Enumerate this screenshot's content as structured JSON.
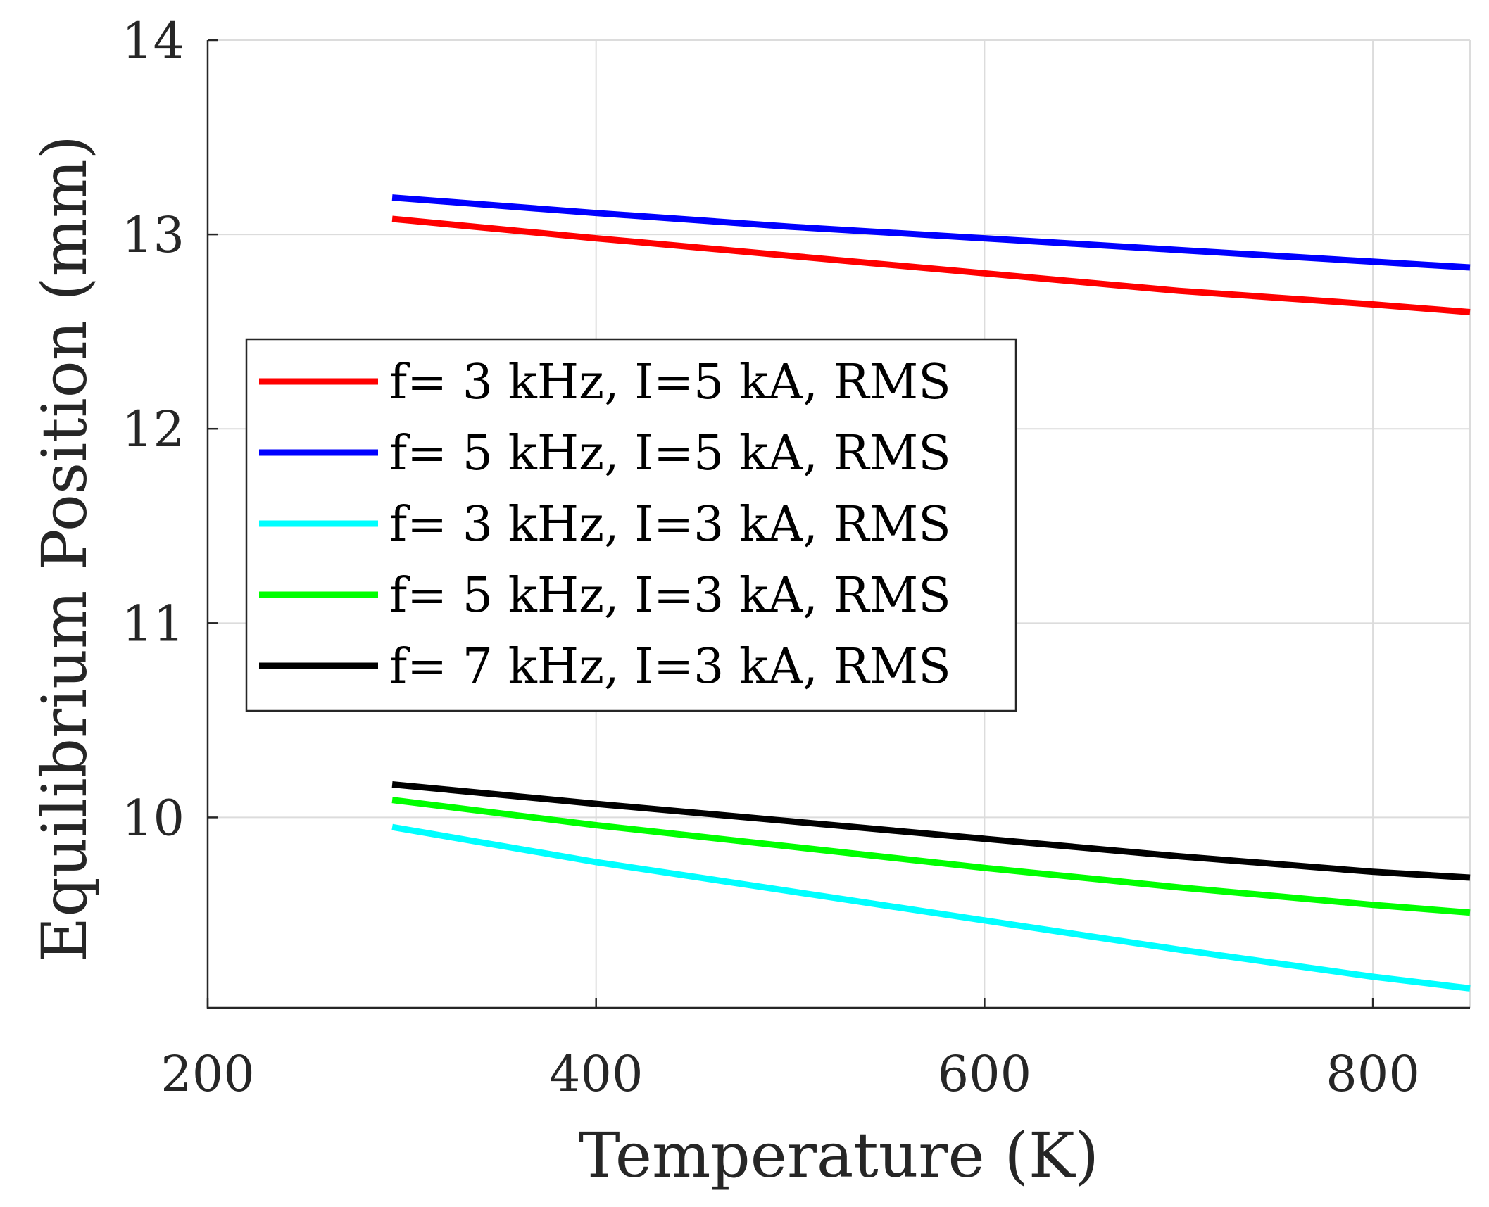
{
  "chart_data": {
    "type": "line",
    "title": "",
    "xlabel": "Temperature (K)",
    "ylabel": "Equilibrium Position (mm)",
    "xlim": [
      200,
      850
    ],
    "ylim": [
      9.02,
      14
    ],
    "xticks": [
      200,
      400,
      600,
      800
    ],
    "yticks": [
      10,
      11,
      12,
      13,
      14
    ],
    "grid": true,
    "legend_location": "center-left",
    "series": [
      {
        "name": "f= 3 kHz, I=5 kA, RMS",
        "color": "#ff0000",
        "x": [
          295,
          400,
          500,
          600,
          700,
          800,
          850
        ],
        "y": [
          13.08,
          12.98,
          12.89,
          12.8,
          12.71,
          12.64,
          12.6
        ]
      },
      {
        "name": "f= 5 kHz, I=5 kA, RMS",
        "color": "#0000ff",
        "x": [
          295,
          400,
          500,
          600,
          700,
          800,
          850
        ],
        "y": [
          13.19,
          13.11,
          13.04,
          12.98,
          12.92,
          12.86,
          12.83
        ]
      },
      {
        "name": "f= 3 kHz, I=3 kA, RMS",
        "color": "#00ffff",
        "x": [
          295,
          400,
          500,
          600,
          700,
          800,
          850
        ],
        "y": [
          9.95,
          9.77,
          9.62,
          9.47,
          9.32,
          9.18,
          9.12
        ]
      },
      {
        "name": "f= 5 kHz, I=3 kA, RMS",
        "color": "#00ff00",
        "x": [
          295,
          400,
          500,
          600,
          700,
          800,
          850
        ],
        "y": [
          10.09,
          9.96,
          9.85,
          9.74,
          9.64,
          9.55,
          9.51
        ]
      },
      {
        "name": "f= 7 kHz, I=3 kA, RMS",
        "color": "#000000",
        "x": [
          295,
          400,
          500,
          600,
          700,
          800,
          850
        ],
        "y": [
          10.17,
          10.07,
          9.98,
          9.89,
          9.8,
          9.72,
          9.69
        ]
      }
    ]
  }
}
